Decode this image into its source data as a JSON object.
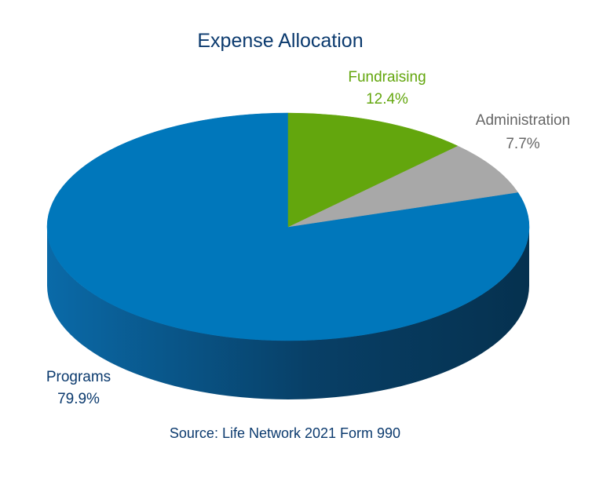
{
  "chart_data": {
    "type": "pie",
    "title": "Expense Allocation",
    "slices": [
      {
        "label": "Programs",
        "value": 79.9,
        "value_label": "79.9%",
        "color": "#0077bb",
        "label_color": "#0b3a6e"
      },
      {
        "label": "Fundraising",
        "value": 12.4,
        "value_label": "12.4%",
        "color": "#63a60d",
        "label_color": "#63a60d"
      },
      {
        "label": "Administration",
        "value": 7.7,
        "value_label": "7.7%",
        "color": "#a8a8a8",
        "label_color": "#666666"
      }
    ],
    "three_d": true,
    "source_prefix": "Source",
    "source_text": ": Life Network 2021 Form 990",
    "colors": {
      "title": "#0b3a6e",
      "programs_side_light": "#0a6aa8",
      "programs_side_dark": "#05314f"
    }
  }
}
